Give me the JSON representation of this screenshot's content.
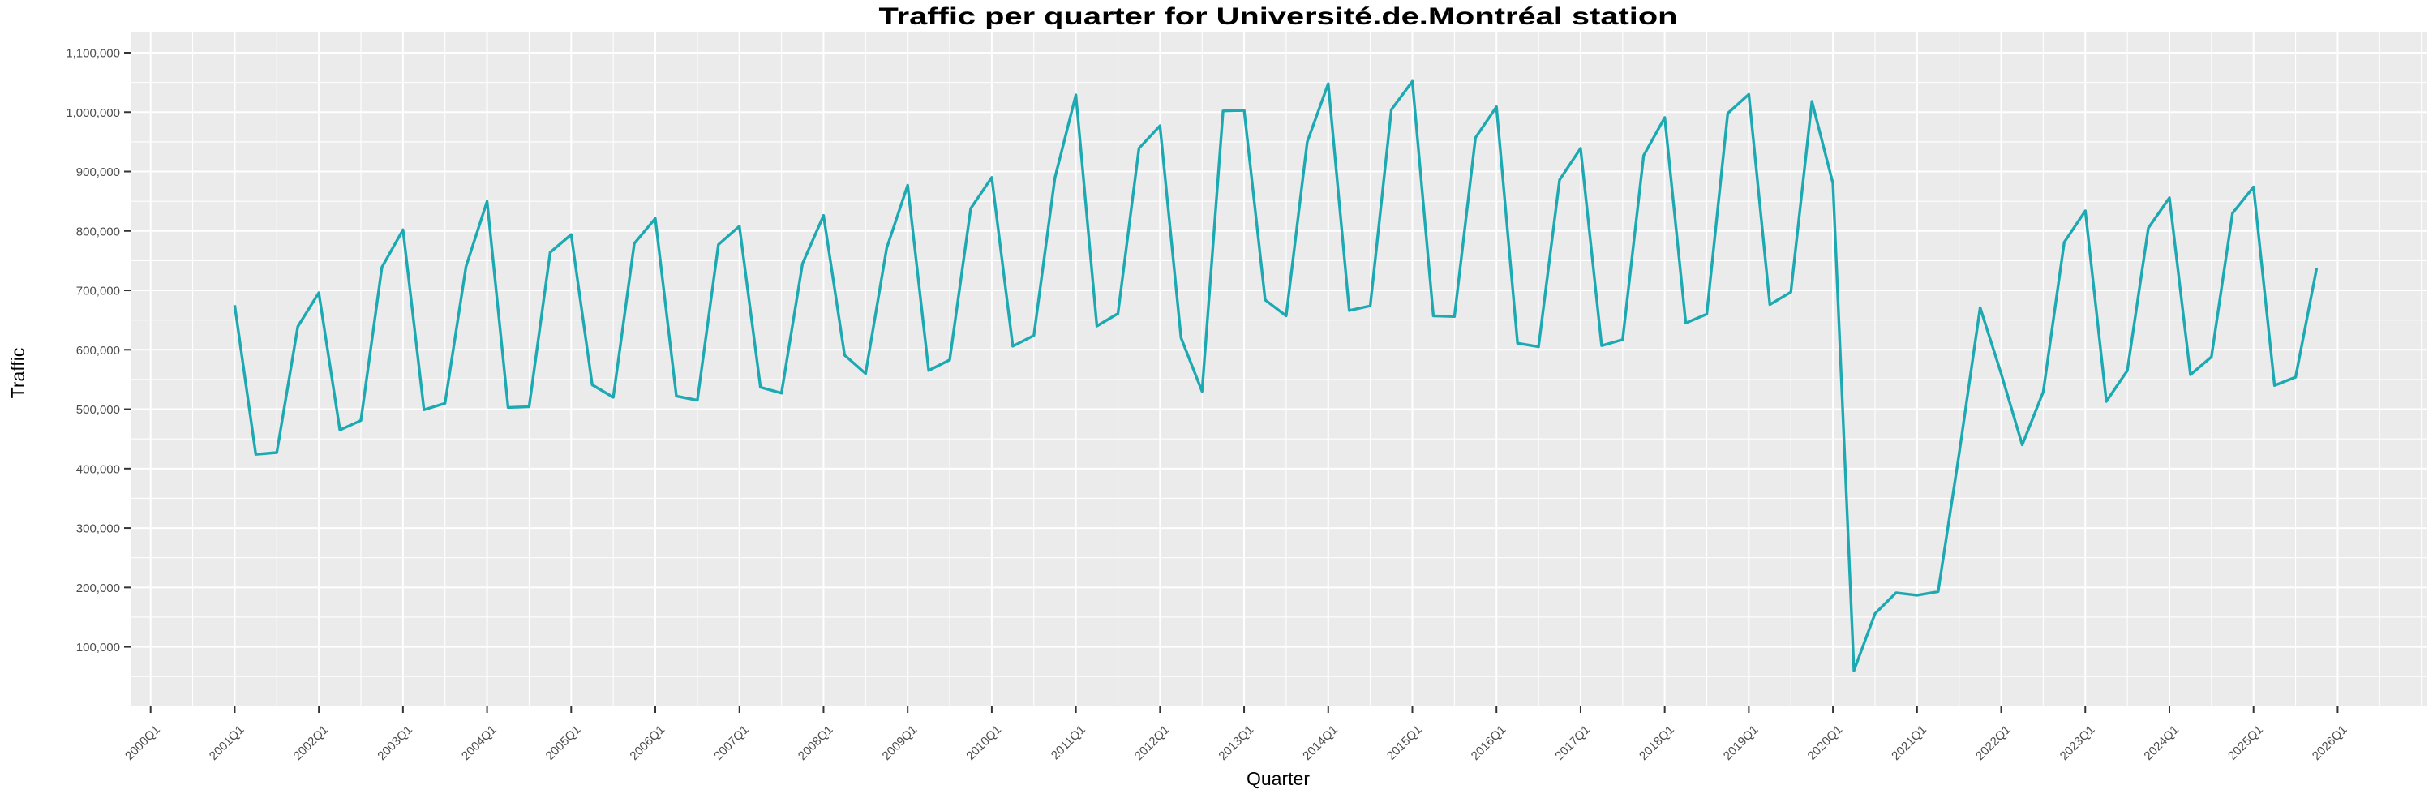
{
  "title": "Traffic per quarter for Université.de.Montréal station",
  "colors": {
    "line": "#1CA9B2",
    "panel_bg": "#EBEBEB",
    "grid": "#FFFFFF",
    "axis_text": "#4D4D4D",
    "tick_mark": "#333333",
    "title_text": "#000000",
    "page_bg": "#FFFFFF"
  },
  "chart_data": {
    "type": "line",
    "title": "Traffic per quarter for Université.de.Montréal station",
    "xlabel": "Quarter",
    "ylabel": "Traffic",
    "legend": false,
    "grid": true,
    "ylim": [
      0,
      1135000
    ],
    "xlim": [
      "2000Q1",
      "2027Q1"
    ],
    "y_tick_values": [
      100000,
      200000,
      300000,
      400000,
      500000,
      600000,
      700000,
      800000,
      900000,
      1000000,
      1100000
    ],
    "x_tick_labels": [
      "2000Q1",
      "2001Q1",
      "2002Q1",
      "2003Q1",
      "2004Q1",
      "2005Q1",
      "2006Q1",
      "2007Q1",
      "2008Q1",
      "2009Q1",
      "2010Q1",
      "2011Q1",
      "2012Q1",
      "2013Q1",
      "2014Q1",
      "2015Q1",
      "2016Q1",
      "2017Q1",
      "2018Q1",
      "2019Q1",
      "2020Q1",
      "2021Q1",
      "2022Q1",
      "2023Q1",
      "2024Q1",
      "2025Q1",
      "2026Q1"
    ],
    "x": [
      "2001Q1",
      "2001Q2",
      "2001Q3",
      "2001Q4",
      "2002Q1",
      "2002Q2",
      "2002Q3",
      "2002Q4",
      "2003Q1",
      "2003Q2",
      "2003Q3",
      "2003Q4",
      "2004Q1",
      "2004Q2",
      "2004Q3",
      "2004Q4",
      "2005Q1",
      "2005Q2",
      "2005Q3",
      "2005Q4",
      "2006Q1",
      "2006Q2",
      "2006Q3",
      "2006Q4",
      "2007Q1",
      "2007Q2",
      "2007Q3",
      "2007Q4",
      "2008Q1",
      "2008Q2",
      "2008Q3",
      "2008Q4",
      "2009Q1",
      "2009Q2",
      "2009Q3",
      "2009Q4",
      "2010Q1",
      "2010Q2",
      "2010Q3",
      "2010Q4",
      "2011Q1",
      "2011Q2",
      "2011Q3",
      "2011Q4",
      "2012Q1",
      "2012Q2",
      "2012Q3",
      "2012Q4",
      "2013Q1",
      "2013Q2",
      "2013Q3",
      "2013Q4",
      "2014Q1",
      "2014Q2",
      "2014Q3",
      "2014Q4",
      "2015Q1",
      "2015Q2",
      "2015Q3",
      "2015Q4",
      "2016Q1",
      "2016Q2",
      "2016Q3",
      "2016Q4",
      "2017Q1",
      "2017Q2",
      "2017Q3",
      "2017Q4",
      "2018Q1",
      "2018Q2",
      "2018Q3",
      "2018Q4",
      "2019Q1",
      "2019Q2",
      "2019Q3",
      "2019Q4",
      "2020Q1",
      "2020Q2",
      "2020Q3",
      "2020Q4",
      "2021Q1",
      "2021Q2",
      "2021Q3",
      "2021Q4",
      "2022Q1",
      "2022Q2",
      "2022Q3",
      "2022Q4",
      "2023Q1",
      "2023Q2",
      "2023Q3",
      "2023Q4",
      "2024Q1",
      "2024Q2",
      "2024Q3",
      "2024Q4",
      "2025Q1",
      "2025Q2",
      "2025Q3",
      "2025Q4"
    ],
    "values": [
      675000,
      424000,
      427000,
      639000,
      696000,
      465000,
      481000,
      739000,
      802000,
      499000,
      510000,
      740000,
      850000,
      503000,
      504000,
      764000,
      794000,
      541000,
      520000,
      779000,
      821000,
      522000,
      515000,
      777000,
      808000,
      537000,
      527000,
      745000,
      826000,
      591000,
      560000,
      771000,
      877000,
      565000,
      583000,
      838000,
      890000,
      606000,
      624000,
      889000,
      1029000,
      640000,
      661000,
      939000,
      977000,
      620000,
      530000,
      1002000,
      1003000,
      684000,
      657000,
      950000,
      1048000,
      666000,
      674000,
      1004000,
      1052000,
      657000,
      656000,
      957000,
      1009000,
      611000,
      605000,
      886000,
      939000,
      607000,
      617000,
      927000,
      991000,
      645000,
      660000,
      998000,
      1030000,
      676000,
      697000,
      1018000,
      880000,
      60000,
      156000,
      191000,
      187000,
      193000,
      425000,
      671000,
      560000,
      440000,
      529000,
      781000,
      834000,
      513000,
      565000,
      805000,
      856000,
      558000,
      588000,
      830000,
      874000,
      540000,
      554000,
      737000
    ]
  }
}
